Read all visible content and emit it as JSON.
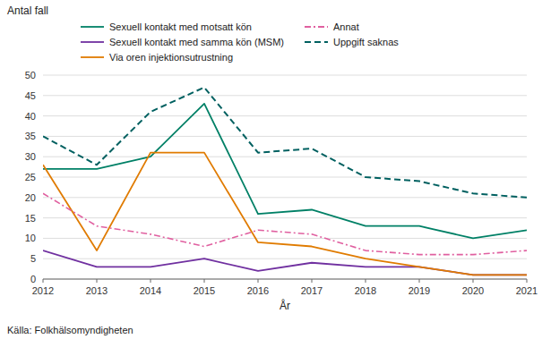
{
  "chart_data": {
    "type": "line",
    "ylabel": "Antal fall",
    "xlabel": "År",
    "source": "Källa: Folkhälsomyndigheten",
    "x": [
      2012,
      2013,
      2014,
      2015,
      2016,
      2017,
      2018,
      2019,
      2020,
      2021
    ],
    "xlim": [
      2012,
      2021
    ],
    "xticks": [
      2012,
      2013,
      2014,
      2015,
      2016,
      2017,
      2018,
      2019,
      2020,
      2021
    ],
    "ylim": [
      0,
      50
    ],
    "yticks": [
      0,
      5,
      10,
      15,
      20,
      25,
      30,
      35,
      40,
      45,
      50
    ],
    "grid": "y",
    "legend": "top",
    "series": [
      {
        "name": "Sexuell kontakt med motsatt kön",
        "color": "#008066",
        "line_style": "solid",
        "values": [
          27,
          27,
          30,
          43,
          16,
          17,
          13,
          13,
          10,
          12
        ]
      },
      {
        "name": "Sexuell kontakt med samma kön (MSM)",
        "color": "#7030a0",
        "line_style": "solid",
        "values": [
          7,
          3,
          3,
          5,
          2,
          4,
          3,
          3,
          1,
          1
        ]
      },
      {
        "name": "Via oren injektionsutrustning",
        "color": "#e07b00",
        "line_style": "solid",
        "values": [
          28,
          7,
          31,
          31,
          9,
          8,
          5,
          3,
          1,
          1
        ]
      },
      {
        "name": "Annat",
        "color": "#e060a0",
        "line_style": "dashdot",
        "values": [
          21,
          13,
          11,
          8,
          12,
          11,
          7,
          6,
          6,
          7
        ]
      },
      {
        "name": "Uppgift saknas",
        "color": "#006060",
        "line_style": "dashed",
        "values": [
          35,
          28,
          41,
          47,
          31,
          32,
          25,
          24,
          21,
          20
        ]
      }
    ]
  }
}
